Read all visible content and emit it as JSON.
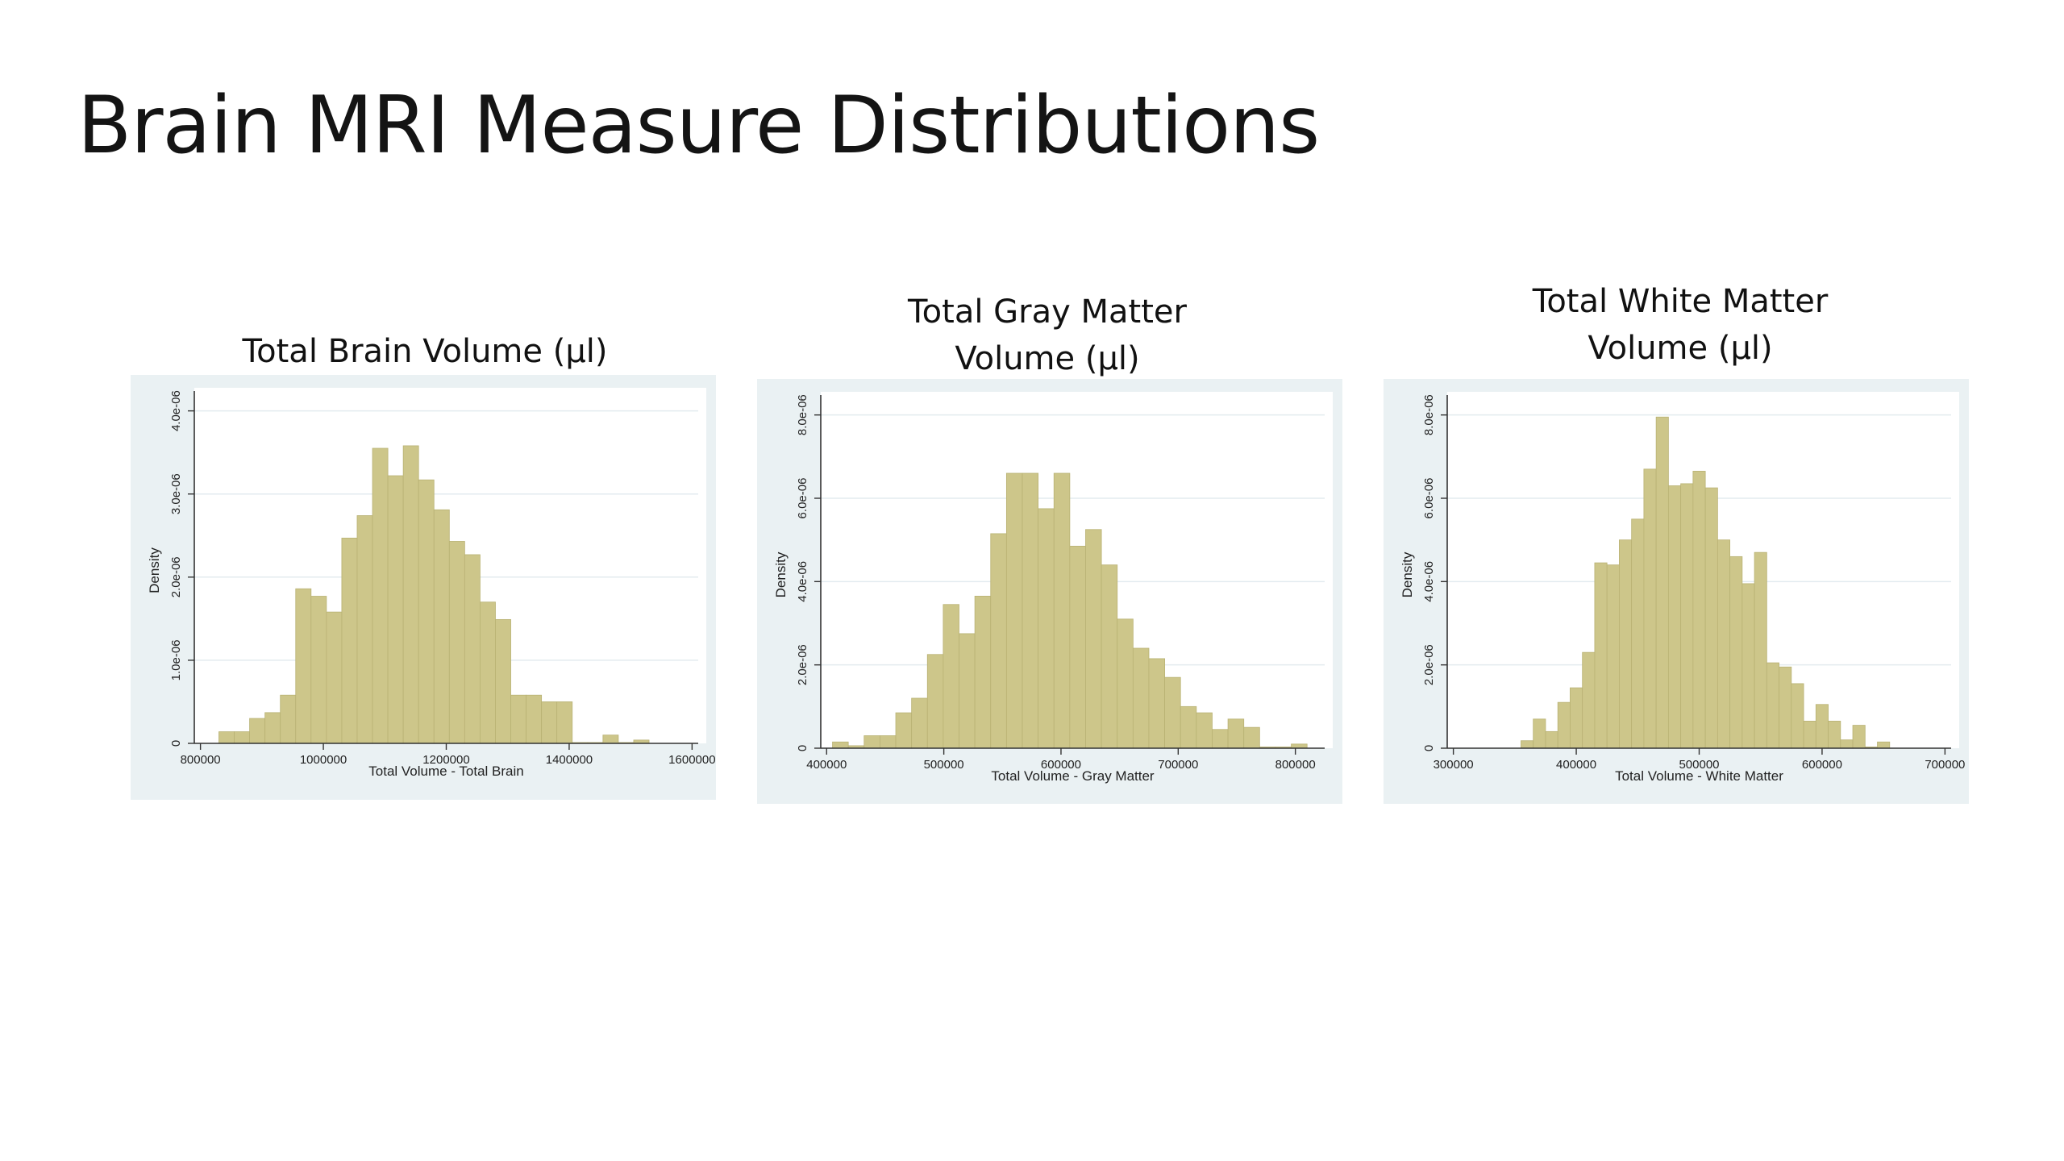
{
  "slide": {
    "title": "Brain MRI Measure Distributions"
  },
  "colors": {
    "bar_fill": "#cdc68a",
    "bar_edge": "#b9b274",
    "chart_background": "#eaf1f3",
    "plot_background": "#ffffff"
  },
  "chart_data": [
    {
      "type": "bar",
      "title": "Total Brain Volume (µl)",
      "xlabel": "Total Volume - Total Brain",
      "ylabel": "Density",
      "xlim": [
        790000,
        1610000
      ],
      "ylim": [
        0,
        4.2e-06
      ],
      "xticks": [
        800000,
        1000000,
        1200000,
        1400000,
        1600000
      ],
      "xtick_labels": [
        "800000",
        "1000000",
        "1200000",
        "1400000",
        "1600000"
      ],
      "yticks": [
        0,
        1e-06,
        2e-06,
        3e-06,
        4e-06
      ],
      "ytick_labels": [
        "0",
        "1.0e-06",
        "2.0e-06",
        "3.0e-06",
        "4.0e-06"
      ],
      "grid": true,
      "bin_start": 830000,
      "bin_width": 25000,
      "values": [
        1.4e-07,
        1.4e-07,
        3e-07,
        3.7e-07,
        5.8e-07,
        1.86e-06,
        1.77e-06,
        1.58e-06,
        2.47e-06,
        2.74e-06,
        3.55e-06,
        3.22e-06,
        3.58e-06,
        3.17e-06,
        2.81e-06,
        2.43e-06,
        2.27e-06,
        1.7e-06,
        1.49e-06,
        5.8e-07,
        5.8e-07,
        5e-07,
        5e-07,
        1e-08,
        1e-08,
        1e-07,
        1e-08,
        4e-08
      ]
    },
    {
      "type": "bar",
      "title": "Total Gray Matter\nVolume (µl)",
      "xlabel": "Total Volume - Gray Matter",
      "ylabel": "Density",
      "xlim": [
        395000,
        825000
      ],
      "ylim": [
        0,
        8.4e-06
      ],
      "xticks": [
        400000,
        500000,
        600000,
        700000,
        800000
      ],
      "xtick_labels": [
        "400000",
        "500000",
        "600000",
        "700000",
        "800000"
      ],
      "yticks": [
        0,
        2e-06,
        4e-06,
        6e-06,
        8e-06
      ],
      "ytick_labels": [
        "0",
        "2.0e-06",
        "4.0e-06",
        "6.0e-06",
        "8.0e-06"
      ],
      "grid": true,
      "bin_start": 405000,
      "bin_width": 13500,
      "values": [
        1.5e-07,
        6e-08,
        3e-07,
        3e-07,
        8.5e-07,
        1.2e-06,
        2.25e-06,
        3.45e-06,
        2.75e-06,
        3.65e-06,
        5.15e-06,
        6.6e-06,
        6.6e-06,
        5.75e-06,
        6.6e-06,
        4.85e-06,
        5.25e-06,
        4.4e-06,
        3.1e-06,
        2.4e-06,
        2.15e-06,
        1.7e-06,
        1e-06,
        8.5e-07,
        4.5e-07,
        7e-07,
        5e-07,
        3e-08,
        3e-08,
        1e-07
      ]
    },
    {
      "type": "bar",
      "title": "Total White Matter\nVolume (µl)",
      "xlabel": "Total Volume - White Matter",
      "ylabel": "Density",
      "xlim": [
        295000,
        705000
      ],
      "ylim": [
        0,
        8.4e-06
      ],
      "xticks": [
        300000,
        400000,
        500000,
        600000,
        700000
      ],
      "xtick_labels": [
        "300000",
        "400000",
        "500000",
        "600000",
        "700000"
      ],
      "yticks": [
        0,
        2e-06,
        4e-06,
        6e-06,
        8e-06
      ],
      "ytick_labels": [
        "0",
        "2.0e-06",
        "4.0e-06",
        "6.0e-06",
        "8.0e-06"
      ],
      "grid": true,
      "bin_start": 355000,
      "bin_width": 10000,
      "values": [
        1.8e-07,
        7e-07,
        4e-07,
        1.1e-06,
        1.45e-06,
        2.3e-06,
        4.45e-06,
        4.4e-06,
        5e-06,
        5.5e-06,
        6.7e-06,
        7.95e-06,
        6.3e-06,
        6.35e-06,
        6.65e-06,
        6.25e-06,
        5e-06,
        4.6e-06,
        3.95e-06,
        4.7e-06,
        2.05e-06,
        1.95e-06,
        1.55e-06,
        6.5e-07,
        1.05e-06,
        6.5e-07,
        2e-07,
        5.5e-07,
        3e-08,
        1.5e-07
      ]
    }
  ]
}
